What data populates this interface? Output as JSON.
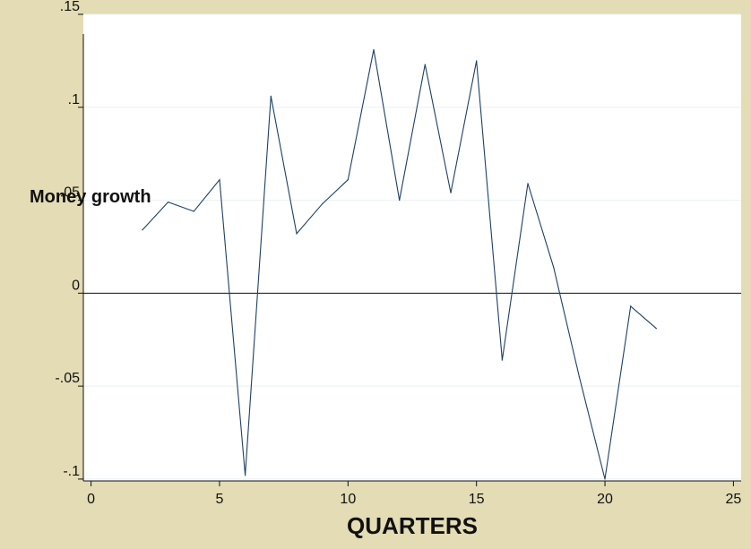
{
  "chart_data": {
    "type": "line",
    "title": "",
    "xlabel": "QUARTERS",
    "ylabel": "Money growth",
    "xlim": [
      -0.3,
      25.3
    ],
    "ylim": [
      -0.101,
      0.15
    ],
    "x_ticks": [
      0,
      5,
      10,
      15,
      20,
      25
    ],
    "x_tick_labels": [
      "0",
      "5",
      "10",
      "15",
      "20",
      "25"
    ],
    "y_ticks": [
      0.15,
      0.1,
      0.05,
      0,
      -0.05,
      -0.1
    ],
    "y_tick_labels": [
      ".15",
      ".1",
      ".05",
      "0",
      "-.05",
      "-.1"
    ],
    "grid": true,
    "reference_line_y": 0,
    "series": [
      {
        "x": [
          2,
          3,
          4,
          5,
          6,
          7,
          8,
          9,
          10,
          11,
          12,
          13,
          14,
          15,
          16,
          17,
          18,
          19,
          20,
          21,
          22
        ],
        "values": [
          0.034,
          0.049,
          0.044,
          0.061,
          -0.098,
          0.106,
          0.032,
          0.048,
          0.061,
          0.131,
          0.05,
          0.123,
          0.054,
          0.125,
          -0.036,
          0.059,
          0.014,
          -0.045,
          -0.1,
          -0.007,
          -0.019
        ],
        "color": "#1f3f66"
      }
    ]
  }
}
